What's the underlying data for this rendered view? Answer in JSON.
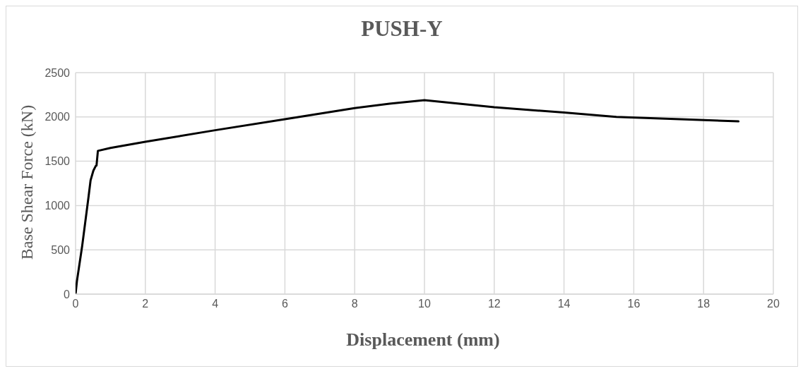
{
  "chart_data": {
    "type": "line",
    "title": "PUSH-Y",
    "xlabel": "Displacement (mm)",
    "ylabel": "Base Shear Force (kN)",
    "x": [
      0,
      0.04,
      0.19,
      0.37,
      0.43,
      0.51,
      0.58,
      0.6,
      0.64,
      1,
      2,
      4,
      6,
      8,
      9,
      10,
      11,
      12,
      14,
      15.5,
      19
    ],
    "series": [
      {
        "color": "#000000",
        "values": [
          0,
          150,
          546,
          1093,
          1284,
          1393,
          1448,
          1450,
          1617,
          1650,
          1720,
          1850,
          1975,
          2100,
          2150,
          2190,
          2150,
          2110,
          2050,
          2000,
          1950
        ]
      }
    ],
    "xlim": [
      0,
      20
    ],
    "xticks": [
      0,
      2,
      4,
      6,
      8,
      10,
      12,
      14,
      16,
      18,
      20
    ],
    "ylim": [
      0,
      2500
    ],
    "yticks": [
      0,
      500,
      1000,
      1500,
      2000,
      2500
    ],
    "grid": true,
    "marker": "none",
    "line_style": "solid",
    "legend": false
  }
}
